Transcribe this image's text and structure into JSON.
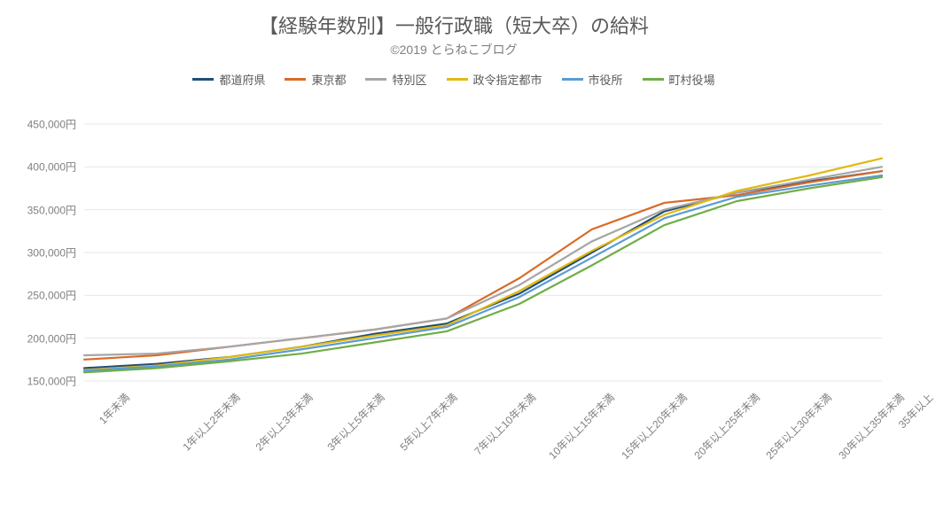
{
  "title": "【経験年数別】一般行政職（短大卒）の給料",
  "subtitle": "©2019 とらねこブログ",
  "chart": {
    "type": "line",
    "background_color": "#ffffff",
    "grid_color": "#e7e7e7",
    "text_color": "#595959",
    "title_fontsize": 22,
    "subtitle_fontsize": 14,
    "label_fontsize": 12,
    "line_width": 2.2,
    "y_axis": {
      "min": 150000,
      "max": 450000,
      "tick_step": 50000,
      "suffix": "円",
      "ticks": [
        150000,
        200000,
        250000,
        300000,
        350000,
        400000,
        450000
      ]
    },
    "categories": [
      "1年未満",
      "1年以上2年未満",
      "2年以上3年未満",
      "3年以上5年未満",
      "5年以上7年未満",
      "7年以上10年未満",
      "10年以上15年未満",
      "15年以上20年未満",
      "20年以上25年未満",
      "25年以上30年未満",
      "30年以上35年未満",
      "35年以上"
    ],
    "series": [
      {
        "name": "都道府県",
        "color": "#1f4e79",
        "values": [
          165000,
          170000,
          178000,
          190000,
          205000,
          217000,
          252000,
          300000,
          348000,
          370000,
          383000,
          395000
        ]
      },
      {
        "name": "東京都",
        "color": "#d96b29",
        "values": [
          175000,
          180000,
          190000,
          200000,
          210000,
          223000,
          270000,
          327000,
          358000,
          367000,
          382000,
          395000
        ]
      },
      {
        "name": "特別区",
        "color": "#a6a6a6",
        "values": [
          180000,
          182000,
          190000,
          200000,
          210000,
          223000,
          262000,
          313000,
          350000,
          370000,
          385000,
          400000
        ]
      },
      {
        "name": "政令指定都市",
        "color": "#e2b90f",
        "values": [
          163000,
          168000,
          178000,
          190000,
          203000,
          215000,
          255000,
          302000,
          344000,
          372000,
          390000,
          410000
        ]
      },
      {
        "name": "市役所",
        "color": "#5b9bd5",
        "values": [
          162000,
          167000,
          175000,
          187000,
          200000,
          213000,
          248000,
          294000,
          340000,
          365000,
          378000,
          390000
        ]
      },
      {
        "name": "町村役場",
        "color": "#70ad47",
        "values": [
          160000,
          165000,
          173000,
          182000,
          195000,
          208000,
          240000,
          285000,
          332000,
          360000,
          375000,
          388000
        ]
      }
    ]
  }
}
